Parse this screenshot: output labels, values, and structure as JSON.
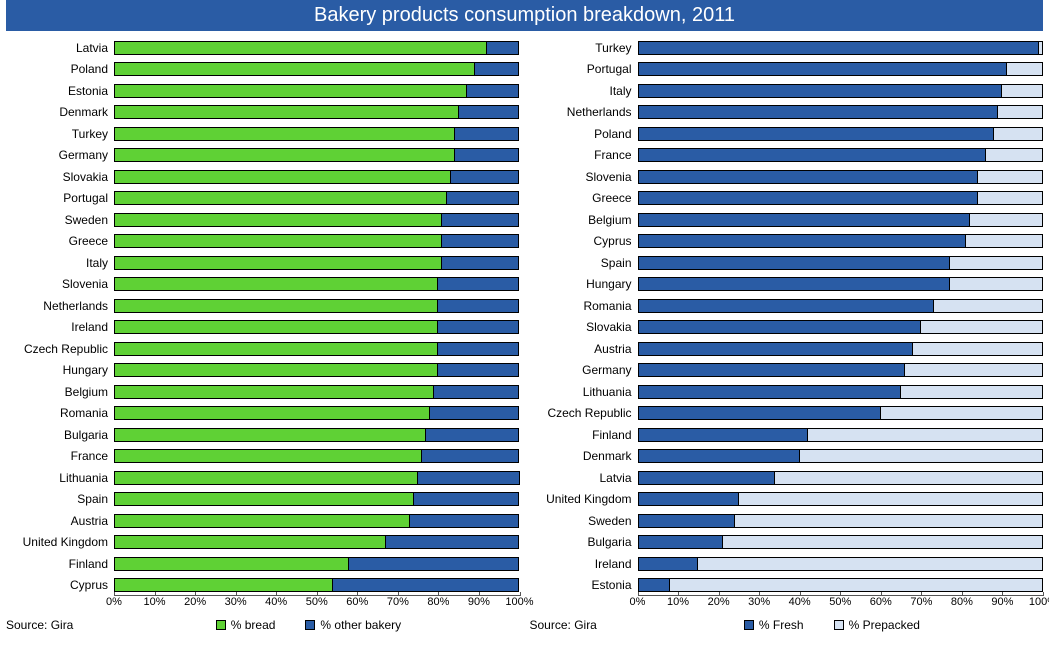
{
  "title": "Bakery products consumption breakdown, 2011",
  "colors": {
    "bread": "#5fd135",
    "other_bakery": "#2a5ca5",
    "fresh": "#2a5ca5",
    "prepacked": "#d6e2f2",
    "title_bg": "#2a5ca5",
    "title_text": "#ffffff",
    "border": "#000000"
  },
  "axis": {
    "min": 0,
    "max": 100,
    "step": 10,
    "suffix": "%"
  },
  "left_chart": {
    "type": "stacked_bar_horizontal",
    "source": "Source: Gira",
    "series": [
      {
        "key": "bread",
        "label": "% bread",
        "color_key": "bread"
      },
      {
        "key": "other",
        "label": "% other bakery",
        "color_key": "other_bakery"
      }
    ],
    "rows": [
      {
        "label": "Latvia",
        "bread": 92,
        "other": 8
      },
      {
        "label": "Poland",
        "bread": 89,
        "other": 11
      },
      {
        "label": "Estonia",
        "bread": 87,
        "other": 13
      },
      {
        "label": "Denmark",
        "bread": 85,
        "other": 15
      },
      {
        "label": "Turkey",
        "bread": 84,
        "other": 16
      },
      {
        "label": "Germany",
        "bread": 84,
        "other": 16
      },
      {
        "label": "Slovakia",
        "bread": 83,
        "other": 17
      },
      {
        "label": "Portugal",
        "bread": 82,
        "other": 18
      },
      {
        "label": "Sweden",
        "bread": 81,
        "other": 19
      },
      {
        "label": "Greece",
        "bread": 81,
        "other": 19
      },
      {
        "label": "Italy",
        "bread": 81,
        "other": 19
      },
      {
        "label": "Slovenia",
        "bread": 80,
        "other": 20
      },
      {
        "label": "Netherlands",
        "bread": 80,
        "other": 20
      },
      {
        "label": "Ireland",
        "bread": 80,
        "other": 20
      },
      {
        "label": "Czech Republic",
        "bread": 80,
        "other": 20
      },
      {
        "label": "Hungary",
        "bread": 80,
        "other": 20
      },
      {
        "label": "Belgium",
        "bread": 79,
        "other": 21
      },
      {
        "label": "Romania",
        "bread": 78,
        "other": 22
      },
      {
        "label": "Bulgaria",
        "bread": 77,
        "other": 23
      },
      {
        "label": "France",
        "bread": 76,
        "other": 24
      },
      {
        "label": "Lithuania",
        "bread": 75,
        "other": 25
      },
      {
        "label": "Spain",
        "bread": 74,
        "other": 26
      },
      {
        "label": "Austria",
        "bread": 73,
        "other": 27
      },
      {
        "label": "United Kingdom",
        "bread": 67,
        "other": 33
      },
      {
        "label": "Finland",
        "bread": 58,
        "other": 42
      },
      {
        "label": "Cyprus",
        "bread": 54,
        "other": 46
      }
    ]
  },
  "right_chart": {
    "type": "stacked_bar_horizontal",
    "source": "Source: Gira",
    "series": [
      {
        "key": "fresh",
        "label": "% Fresh",
        "color_key": "fresh"
      },
      {
        "key": "prepacked",
        "label": "% Prepacked",
        "color_key": "prepacked"
      }
    ],
    "rows": [
      {
        "label": "Turkey",
        "fresh": 99,
        "prepacked": 1
      },
      {
        "label": "Portugal",
        "fresh": 91,
        "prepacked": 9
      },
      {
        "label": "Italy",
        "fresh": 90,
        "prepacked": 10
      },
      {
        "label": "Netherlands",
        "fresh": 89,
        "prepacked": 11
      },
      {
        "label": "Poland",
        "fresh": 88,
        "prepacked": 12
      },
      {
        "label": "France",
        "fresh": 86,
        "prepacked": 14
      },
      {
        "label": "Slovenia",
        "fresh": 84,
        "prepacked": 16
      },
      {
        "label": "Greece",
        "fresh": 84,
        "prepacked": 16
      },
      {
        "label": "Belgium",
        "fresh": 82,
        "prepacked": 18
      },
      {
        "label": "Cyprus",
        "fresh": 81,
        "prepacked": 19
      },
      {
        "label": "Spain",
        "fresh": 77,
        "prepacked": 23
      },
      {
        "label": "Hungary",
        "fresh": 77,
        "prepacked": 23
      },
      {
        "label": "Romania",
        "fresh": 73,
        "prepacked": 27
      },
      {
        "label": "Slovakia",
        "fresh": 70,
        "prepacked": 30
      },
      {
        "label": "Austria",
        "fresh": 68,
        "prepacked": 32
      },
      {
        "label": "Germany",
        "fresh": 66,
        "prepacked": 34
      },
      {
        "label": "Lithuania",
        "fresh": 65,
        "prepacked": 35
      },
      {
        "label": "Czech Republic",
        "fresh": 60,
        "prepacked": 40
      },
      {
        "label": "Finland",
        "fresh": 42,
        "prepacked": 58
      },
      {
        "label": "Denmark",
        "fresh": 40,
        "prepacked": 60
      },
      {
        "label": "Latvia",
        "fresh": 34,
        "prepacked": 66
      },
      {
        "label": "United Kingdom",
        "fresh": 25,
        "prepacked": 75
      },
      {
        "label": "Sweden",
        "fresh": 24,
        "prepacked": 76
      },
      {
        "label": "Bulgaria",
        "fresh": 21,
        "prepacked": 79
      },
      {
        "label": "Ireland",
        "fresh": 15,
        "prepacked": 85
      },
      {
        "label": "Estonia",
        "fresh": 8,
        "prepacked": 92
      }
    ]
  }
}
